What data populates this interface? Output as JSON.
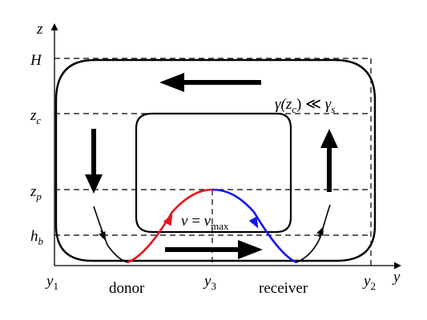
{
  "axes": {
    "y_axis_label": "z",
    "x_axis_label": "y"
  },
  "z_levels": {
    "H": "H",
    "zc": "z",
    "zc_sub": "c",
    "zp": "z",
    "zp_sub": "p",
    "hb": "h",
    "hb_sub": "b"
  },
  "y_positions": {
    "y1": "y",
    "y1_sub": "1",
    "y2": "y",
    "y2_sub": "2",
    "y3": "y",
    "y3_sub": "3"
  },
  "labels": {
    "donor": "donor",
    "receiver": "receiver",
    "velocity_v": "v",
    "velocity_eq": " = ",
    "velocity_vmax": "v",
    "velocity_vmax_sub": "max",
    "gamma_gamma": "γ(",
    "gamma_z": "z",
    "gamma_c": "c",
    "gamma_rest": ") ≪ ",
    "gamma_gamma2": "γ",
    "gamma_s": "s"
  },
  "colors": {
    "ink": "#000000",
    "accelerating_branch": "#e8141b",
    "decelerating_branch": "#1414f0"
  },
  "icons": {
    "flow_left": "arrow-left",
    "flow_right": "arrow-right",
    "flow_down": "arrow-down",
    "flow_up": "arrow-up"
  }
}
